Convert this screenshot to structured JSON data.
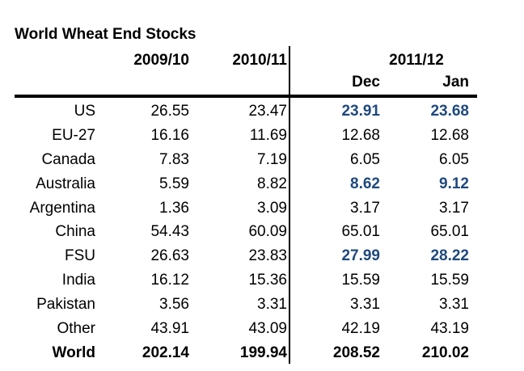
{
  "colors": {
    "highlight_blue": "#1f497d",
    "text_black": "#000000",
    "background": "#ffffff"
  },
  "chart_data": {
    "type": "table",
    "title": "World Wheat End Stocks",
    "columns": [
      {
        "label": "2009/10"
      },
      {
        "label": "2010/11"
      }
    ],
    "column_group_2011_12": {
      "label": "2011/12",
      "subcolumns": [
        "Dec",
        "Jan"
      ]
    },
    "rows": [
      {
        "label": "US",
        "values": [
          "26.55",
          "23.47",
          "23.91",
          "23.68"
        ],
        "highlight_dec_jan": true,
        "is_total": false
      },
      {
        "label": "EU-27",
        "values": [
          "16.16",
          "11.69",
          "12.68",
          "12.68"
        ],
        "highlight_dec_jan": false,
        "is_total": false
      },
      {
        "label": "Canada",
        "values": [
          "7.83",
          "7.19",
          "6.05",
          "6.05"
        ],
        "highlight_dec_jan": false,
        "is_total": false
      },
      {
        "label": "Australia",
        "values": [
          "5.59",
          "8.82",
          "8.62",
          "9.12"
        ],
        "highlight_dec_jan": true,
        "is_total": false
      },
      {
        "label": "Argentina",
        "values": [
          "1.36",
          "3.09",
          "3.17",
          "3.17"
        ],
        "highlight_dec_jan": false,
        "is_total": false
      },
      {
        "label": "China",
        "values": [
          "54.43",
          "60.09",
          "65.01",
          "65.01"
        ],
        "highlight_dec_jan": false,
        "is_total": false
      },
      {
        "label": "FSU",
        "values": [
          "26.63",
          "23.83",
          "27.99",
          "28.22"
        ],
        "highlight_dec_jan": true,
        "is_total": false
      },
      {
        "label": "India",
        "values": [
          "16.12",
          "15.36",
          "15.59",
          "15.59"
        ],
        "highlight_dec_jan": false,
        "is_total": false
      },
      {
        "label": "Pakistan",
        "values": [
          "3.56",
          "3.31",
          "3.31",
          "3.31"
        ],
        "highlight_dec_jan": false,
        "is_total": false
      },
      {
        "label": "Other",
        "values": [
          "43.91",
          "43.09",
          "42.19",
          "43.19"
        ],
        "highlight_dec_jan": false,
        "is_total": false
      },
      {
        "label": "World",
        "values": [
          "202.14",
          "199.94",
          "208.52",
          "210.02"
        ],
        "highlight_dec_jan": false,
        "is_total": true
      }
    ]
  }
}
